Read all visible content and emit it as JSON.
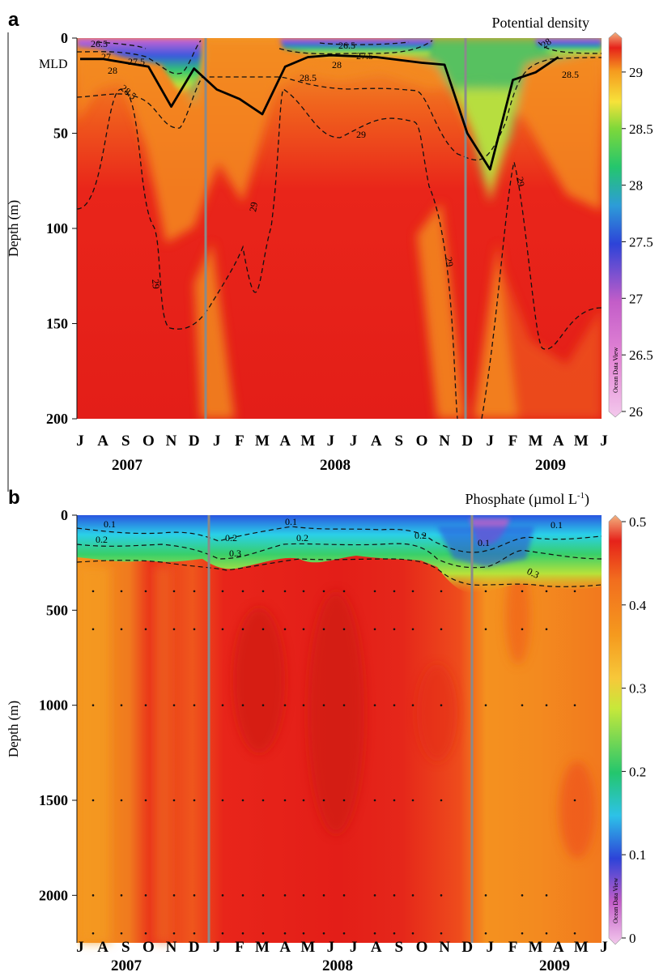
{
  "panels": [
    {
      "letter": "a",
      "title": "Potential density",
      "ylabel": "Depth (m)",
      "yticks": [
        "0",
        "50",
        "100",
        "150",
        "200"
      ],
      "colorbar_ticks": [
        "29",
        "28.5",
        "28",
        "27.5",
        "27",
        "26.5",
        "26"
      ],
      "colorbar_range": [
        26,
        29.3
      ],
      "mld_label": "MLD",
      "watermark": "Ocean Data View",
      "contour_labels": [
        "26.5",
        "27",
        "27.5",
        "28",
        "28.5",
        "29",
        "26.5",
        "27.5",
        "28",
        "28.5",
        "29",
        "29",
        "29",
        "29",
        "28",
        "28.5"
      ]
    },
    {
      "letter": "b",
      "title": "Phosphate (µmol L",
      "title_sup": "-1",
      "title_end": ")",
      "ylabel": "Depth (m)",
      "yticks": [
        "0",
        "500",
        "1000",
        "1500",
        "2000"
      ],
      "colorbar_ticks": [
        "0.5",
        "0.4",
        "0.3",
        "0.2",
        "0.1",
        "0"
      ],
      "colorbar_range": [
        0,
        0.5
      ],
      "watermark": "Ocean Data View",
      "contour_labels": [
        "0.1",
        "0.2",
        "0.2",
        "0.3",
        "0.1",
        "0.2",
        "0.2",
        "0.1",
        "0.3",
        "0.1"
      ]
    }
  ],
  "months": [
    "J",
    "A",
    "S",
    "O",
    "N",
    "D",
    "J",
    "F",
    "M",
    "A",
    "M",
    "J",
    "J",
    "A",
    "S",
    "O",
    "N",
    "D",
    "J",
    "F",
    "M",
    "A",
    "M",
    "J"
  ],
  "years": [
    "2007",
    "2008",
    "2009"
  ],
  "chart_data": [
    {
      "type": "heatmap",
      "title": "Potential density",
      "ylabel": "Depth (m)",
      "x_range": [
        "2007-07",
        "2009-06"
      ],
      "ylim": [
        200,
        0
      ],
      "colorbar": [
        26,
        29.3
      ],
      "series": [
        {
          "name": "MLD",
          "points": [
            [
              "2007-07",
              11
            ],
            [
              "2007-08",
              11
            ],
            [
              "2007-10",
              15
            ],
            [
              "2007-11",
              36
            ],
            [
              "2007-12",
              16
            ],
            [
              "2008-01",
              27
            ],
            [
              "2008-02",
              32
            ],
            [
              "2008-03",
              40
            ],
            [
              "2008-04",
              15
            ],
            [
              "2008-05",
              10
            ],
            [
              "2008-06",
              9
            ],
            [
              "2008-08",
              10
            ],
            [
              "2008-10",
              13
            ],
            [
              "2008-11",
              14
            ],
            [
              "2008-12",
              50
            ],
            [
              "2009-01",
              69
            ],
            [
              "2009-02",
              22
            ],
            [
              "2009-03",
              18
            ],
            [
              "2009-04",
              10
            ]
          ]
        },
        {
          "name": "29",
          "points": [
            [
              "2007-07",
              89
            ],
            [
              "2007-08",
              85
            ],
            [
              "2007-09",
              47
            ],
            [
              "2007-10",
              60
            ],
            [
              "2007-11",
              110
            ],
            [
              "2007-12",
              150
            ],
            [
              "2008-01",
              140
            ],
            [
              "2008-02",
              100
            ],
            [
              "2008-03",
              115
            ],
            [
              "2008-04",
              38
            ],
            [
              "2008-05",
              55
            ],
            [
              "2008-06",
              50
            ],
            [
              "2008-07",
              42
            ],
            [
              "2008-08",
              45
            ],
            [
              "2008-09",
              45
            ],
            [
              "2008-10",
              65
            ],
            [
              "2008-11",
              100
            ],
            [
              "2008-12",
              200
            ],
            [
              "2009-02",
              65
            ],
            [
              "2009-03",
              125
            ],
            [
              "2009-04",
              110
            ],
            [
              "2009-06",
              108
            ]
          ]
        },
        {
          "name": "28.5",
          "points": [
            [
              "2007-07",
              30
            ],
            [
              "2007-09",
              26
            ],
            [
              "2007-10",
              34
            ],
            [
              "2007-11",
              45
            ],
            [
              "2007-12",
              20
            ],
            [
              "2008-03",
              12
            ],
            [
              "2008-05",
              26
            ],
            [
              "2008-07",
              32
            ],
            [
              "2008-09",
              30
            ],
            [
              "2008-11",
              60
            ],
            [
              "2008-12",
              75
            ],
            [
              "2009-01",
              60
            ],
            [
              "2009-02",
              20
            ],
            [
              "2009-03",
              12
            ],
            [
              "2009-06",
              12
            ]
          ]
        }
      ]
    },
    {
      "type": "heatmap",
      "title": "Phosphate (µmol L-1)",
      "ylabel": "Depth (m)",
      "x_range": [
        "2007-07",
        "2009-06"
      ],
      "ylim": [
        2250,
        0
      ],
      "colorbar": [
        0,
        0.5
      ],
      "series": [
        {
          "name": "0.1",
          "points": [
            [
              "2007-07",
              30
            ],
            [
              "2007-09",
              50
            ],
            [
              "2007-11",
              35
            ],
            [
              "2008-01",
              30
            ],
            [
              "2008-03",
              70
            ],
            [
              "2008-05",
              30
            ],
            [
              "2008-07",
              45
            ],
            [
              "2008-09",
              40
            ],
            [
              "2008-11",
              120
            ],
            [
              "2008-12",
              150
            ],
            [
              "2009-01",
              120
            ],
            [
              "2009-02",
              50
            ],
            [
              "2009-04",
              70
            ],
            [
              "2009-06",
              40
            ]
          ]
        },
        {
          "name": "0.2",
          "points": [
            [
              "2007-07",
              100
            ],
            [
              "2007-08",
              120
            ],
            [
              "2007-10",
              110
            ],
            [
              "2007-12",
              140
            ],
            [
              "2008-02",
              130
            ],
            [
              "2008-04",
              90
            ],
            [
              "2008-06",
              120
            ],
            [
              "2008-08",
              110
            ],
            [
              "2008-10",
              140
            ],
            [
              "2008-12",
              210
            ],
            [
              "2009-01",
              230
            ],
            [
              "2009-03",
              150
            ],
            [
              "2009-05",
              180
            ],
            [
              "2009-06",
              190
            ]
          ]
        },
        {
          "name": "0.3",
          "points": [
            [
              "2007-07",
              200
            ],
            [
              "2007-09",
              180
            ],
            [
              "2007-11",
              210
            ],
            [
              "2008-01",
              200
            ],
            [
              "2008-03",
              180
            ],
            [
              "2008-05",
              170
            ],
            [
              "2008-07",
              190
            ],
            [
              "2008-09",
              180
            ],
            [
              "2008-11",
              220
            ],
            [
              "2008-12",
              330
            ],
            [
              "2009-02",
              300
            ],
            [
              "2009-04",
              340
            ],
            [
              "2009-06",
              320
            ]
          ]
        }
      ]
    }
  ]
}
